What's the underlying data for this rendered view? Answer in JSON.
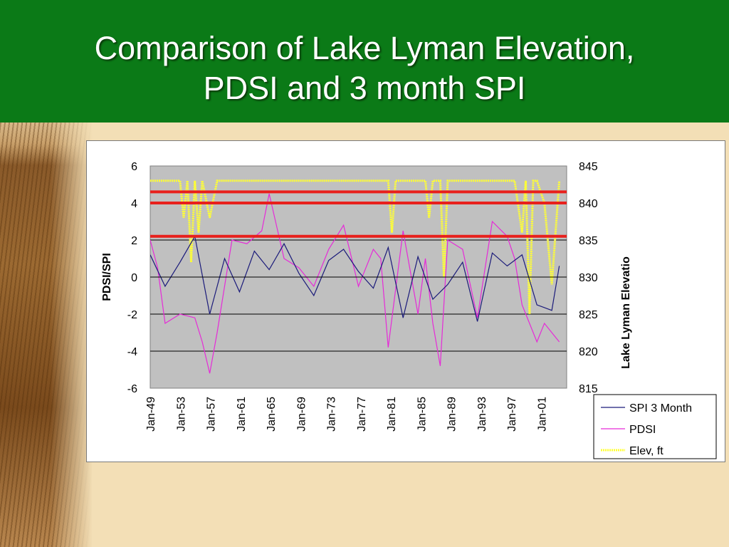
{
  "slide": {
    "title_line1": "Comparison of Lake Lyman Elevation,",
    "title_line2": "PDSI and 3 month SPI"
  },
  "colors": {
    "header": "#0b7a17",
    "background": "#f3dfb6",
    "plot_area": "#c0c0c0",
    "spi": "#1a1a7a",
    "pdsi": "#e62ad8",
    "elev": "#ffff33",
    "threshold": "#e8201c"
  },
  "chart_data": {
    "type": "line",
    "ylabel": "PDSI/SPI",
    "y2label": "Lake Lyman Elevatio",
    "ylim": [
      -6,
      6
    ],
    "y2lim": [
      815,
      845
    ],
    "yticks": [
      "6",
      "4",
      "2",
      "0",
      "-2",
      "-4",
      "-6"
    ],
    "y2ticks": [
      "845",
      "840",
      "835",
      "830",
      "825",
      "820",
      "815"
    ],
    "x_range": [
      "1949-01",
      "2004-12"
    ],
    "x_tick_labels": [
      "Jan-49",
      "Jan-53",
      "Jan-57",
      "Jan-61",
      "Jan-65",
      "Jan-69",
      "Jan-73",
      "Jan-77",
      "Jan-81",
      "Jan-85",
      "Jan-89",
      "Jan-93",
      "Jan-97",
      "Jan-01"
    ],
    "grid": "horizontal",
    "legend_position": "right",
    "series": [
      {
        "name": "SPI 3 Month",
        "axis": "left",
        "x": [
          "1949",
          "1951",
          "1953",
          "1955",
          "1957",
          "1959",
          "1961",
          "1963",
          "1965",
          "1967",
          "1969",
          "1971",
          "1973",
          "1975",
          "1977",
          "1979",
          "1981",
          "1983",
          "1985",
          "1987",
          "1989",
          "1991",
          "1993",
          "1995",
          "1997",
          "1999",
          "2001",
          "2003",
          "2004"
        ],
        "values": [
          1.2,
          -0.5,
          0.8,
          2.2,
          -2.0,
          1.0,
          -0.8,
          1.4,
          0.4,
          1.8,
          0.2,
          -1.0,
          0.9,
          1.5,
          0.3,
          -0.6,
          1.6,
          -2.2,
          1.1,
          -1.2,
          -0.4,
          0.8,
          -2.4,
          1.3,
          0.6,
          1.2,
          -1.5,
          -1.8,
          0.6
        ]
      },
      {
        "name": "PDSI",
        "axis": "left",
        "x": [
          "1949",
          "1950",
          "1951",
          "1953",
          "1955",
          "1956",
          "1957",
          "1958",
          "1960",
          "1962",
          "1964",
          "1965",
          "1967",
          "1969",
          "1971",
          "1973",
          "1975",
          "1977",
          "1979",
          "1980",
          "1981",
          "1983",
          "1985",
          "1986",
          "1987",
          "1988",
          "1989",
          "1991",
          "1993",
          "1995",
          "1997",
          "1998",
          "1999",
          "2000",
          "2001",
          "2002",
          "2003",
          "2004"
        ],
        "values": [
          2.0,
          0.5,
          -2.5,
          -2.0,
          -2.2,
          -3.5,
          -5.2,
          -3.0,
          2.0,
          1.8,
          2.5,
          4.5,
          1.0,
          0.5,
          -0.5,
          1.5,
          2.8,
          -0.5,
          1.5,
          1.0,
          -3.8,
          2.5,
          -2.0,
          1.0,
          -2.5,
          -4.8,
          2.0,
          1.5,
          -2.2,
          3.0,
          2.2,
          1.0,
          -1.5,
          -2.5,
          -3.5,
          -2.5,
          -3.0,
          -3.5
        ]
      },
      {
        "name": "Elev, ft",
        "axis": "right",
        "x": [
          "1949",
          "1951",
          "1953",
          "1953.5",
          "1954",
          "1954.5",
          "1955",
          "1955.5",
          "1956",
          "1957",
          "1958",
          "1960",
          "1965",
          "1970",
          "1975",
          "1980",
          "1981",
          "1981.5",
          "1982",
          "1985",
          "1986",
          "1986.5",
          "1987",
          "1988",
          "1988.5",
          "1989",
          "1990",
          "1995",
          "1998",
          "1999",
          "1999.5",
          "2000",
          "2000.5",
          "2001",
          "2002",
          "2003",
          "2004"
        ],
        "values": [
          843,
          843,
          843,
          838,
          843,
          832,
          843,
          836,
          843,
          838,
          843,
          843,
          843,
          843,
          843,
          843,
          843,
          836,
          843,
          843,
          843,
          838,
          843,
          843,
          830,
          843,
          843,
          843,
          843,
          836,
          843,
          825,
          843,
          843,
          840,
          829,
          843
        ]
      }
    ],
    "threshold_lines": [
      {
        "value": 841.5,
        "axis": "right"
      },
      {
        "value": 840,
        "axis": "right"
      },
      {
        "value": 835.5,
        "axis": "right"
      }
    ]
  }
}
